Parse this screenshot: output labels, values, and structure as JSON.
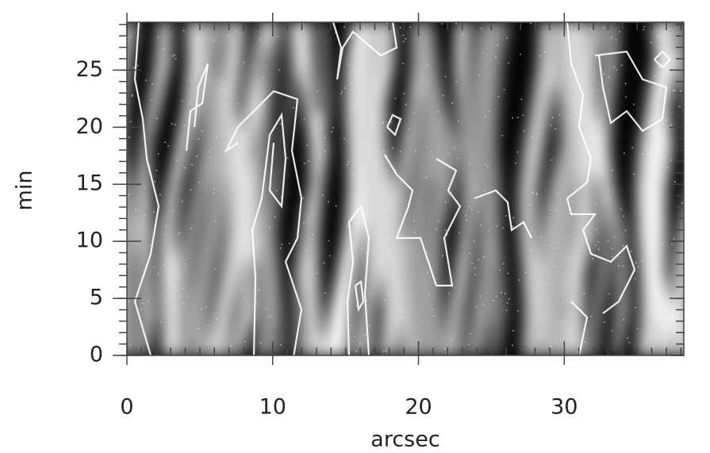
{
  "chart_data": {
    "type": "image",
    "x_label": "arcsec",
    "y_label": "min",
    "xlim": [
      0,
      38.2
    ],
    "ylim": [
      0,
      29.2
    ],
    "xticks": [
      0,
      10,
      20,
      30
    ],
    "yticks": [
      0,
      5,
      10,
      15,
      20,
      25
    ],
    "xminorticks": [
      0,
      1,
      2,
      3,
      4,
      5,
      6,
      7,
      8,
      9,
      10,
      11,
      12,
      13,
      14,
      15,
      16,
      17,
      18,
      19,
      20,
      21,
      22,
      23,
      24,
      25,
      26,
      27,
      28,
      29,
      30,
      31,
      32,
      33,
      34,
      35,
      36,
      37,
      38
    ],
    "yminorticks": [
      0,
      1,
      2,
      3,
      4,
      5,
      6,
      7,
      8,
      9,
      10,
      11,
      12,
      13,
      14,
      15,
      16,
      17,
      18,
      19,
      20,
      21,
      22,
      23,
      24,
      25,
      26,
      27,
      28,
      29
    ]
  }
}
